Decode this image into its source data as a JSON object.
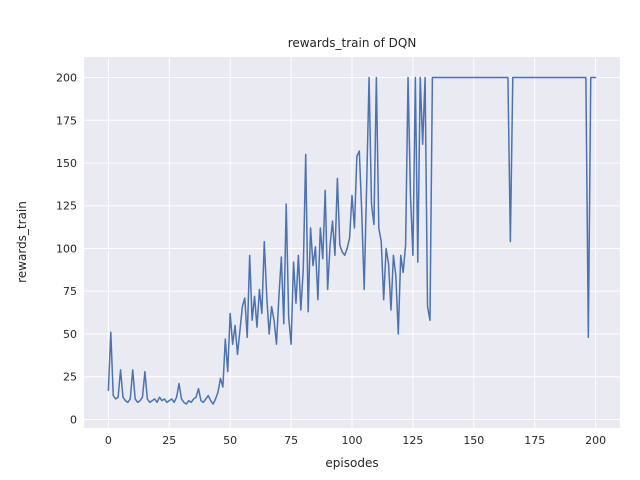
{
  "figure": {
    "title": "rewards_train of DQN",
    "xlabel": "episodes",
    "ylabel": "rewards_train"
  },
  "chart_data": {
    "type": "line",
    "title": "rewards_train of DQN",
    "xlabel": "episodes",
    "ylabel": "rewards_train",
    "x_description": "episode index; values[i] is plotted at x = i",
    "x_ticks": [
      0,
      25,
      50,
      75,
      100,
      125,
      150,
      175,
      200
    ],
    "y_ticks": [
      0,
      25,
      50,
      75,
      100,
      125,
      150,
      175,
      200
    ],
    "xlim": [
      -10,
      210
    ],
    "ylim": [
      -5,
      212
    ],
    "grid": true,
    "legend_position": "none",
    "line_color": "#4c72b0",
    "axes_background": "#eaeaf2",
    "grid_color": "#ffffff",
    "text_color": "#262626",
    "values": [
      17,
      51,
      14,
      12,
      13,
      29,
      13,
      11,
      10,
      12,
      29,
      12,
      10,
      11,
      13,
      28,
      12,
      10,
      11,
      12,
      10,
      13,
      11,
      12,
      10,
      11,
      12,
      10,
      13,
      21,
      12,
      10,
      9,
      11,
      10,
      12,
      13,
      18,
      11,
      10,
      12,
      14,
      11,
      9,
      12,
      16,
      24,
      19,
      47,
      28,
      62,
      44,
      55,
      38,
      52,
      66,
      71,
      48,
      96,
      58,
      72,
      54,
      76,
      62,
      104,
      72,
      50,
      66,
      58,
      44,
      72,
      95,
      56,
      126,
      60,
      44,
      92,
      68,
      96,
      64,
      88,
      155,
      63,
      112,
      90,
      101,
      70,
      112,
      94,
      134,
      76,
      102,
      116,
      96,
      141,
      102,
      98,
      96,
      100,
      106,
      131,
      112,
      154,
      157,
      121,
      76,
      136,
      200,
      126,
      114,
      200,
      112,
      104,
      70,
      100,
      91,
      64,
      96,
      84,
      50,
      96,
      86,
      102,
      200,
      131,
      96,
      200,
      92,
      200,
      161,
      200,
      66,
      58,
      200,
      200,
      200,
      200,
      200,
      200,
      200,
      200,
      200,
      200,
      200,
      200,
      200,
      200,
      200,
      200,
      200,
      200,
      200,
      200,
      200,
      200,
      200,
      200,
      200,
      200,
      200,
      200,
      200,
      200,
      200,
      200,
      104,
      200,
      200,
      200,
      200,
      200,
      200,
      200,
      200,
      200,
      200,
      200,
      200,
      200,
      200,
      200,
      200,
      200,
      200,
      200,
      200,
      200,
      200,
      200,
      200,
      200,
      200,
      200,
      200,
      200,
      200,
      200,
      48,
      200,
      200,
      200
    ]
  }
}
